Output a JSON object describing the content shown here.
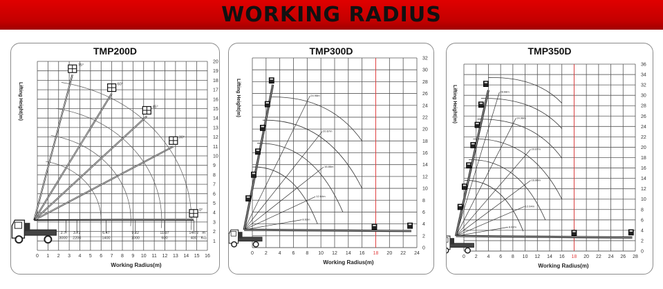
{
  "banner": {
    "title": "WORKING RADIUS",
    "background": "#d40000"
  },
  "chart_data": [
    {
      "type": "line",
      "title": "TMP200D",
      "xlabel": "Working Radius(m)",
      "ylabel": "Lifting Height(m)",
      "xlim": [
        0,
        16
      ],
      "ylim": [
        0,
        20
      ],
      "xticks": [
        0,
        1,
        2,
        3,
        4,
        5,
        6,
        7,
        8,
        9,
        10,
        11,
        12,
        13,
        14,
        15,
        16
      ],
      "yticks": [
        1,
        2,
        3,
        4,
        5,
        6,
        7,
        8,
        9,
        10,
        11,
        12,
        13,
        14,
        15,
        16,
        17,
        18,
        19,
        20
      ],
      "grid": true,
      "pivot": [
        -0.3,
        3.2
      ],
      "booms": [
        {
          "angle": "75°",
          "tip": [
            3.3,
            18.6
          ]
        },
        {
          "angle": "60°",
          "tip": [
            7.0,
            16.6
          ]
        },
        {
          "angle": "45°",
          "tip": [
            10.3,
            14.2
          ]
        },
        {
          "angle": "30°",
          "tip": [
            12.8,
            11.0
          ]
        },
        {
          "angle": "0°",
          "tip": [
            14.7,
            3.3
          ]
        }
      ],
      "arc_radii": [
        6.3,
        9.1,
        12.0,
        14.8
      ],
      "load_table": {
        "radius_unit": "m",
        "load_unit": "KG",
        "radius_m": [
          "2.7",
          "3.72",
          "6.47",
          "9.22",
          "11.97",
          "14.72"
        ],
        "load_kg": [
          "3000",
          "2200",
          "1400",
          "1000",
          "600",
          "400"
        ]
      },
      "highlight_x": null
    },
    {
      "type": "line",
      "title": "TMP300D",
      "xlabel": "Working Radius(m)",
      "ylabel": "Lifting Height(m)",
      "xlim": [
        0,
        24
      ],
      "ylim": [
        0,
        32
      ],
      "xticks": [
        0,
        2,
        4,
        6,
        8,
        10,
        12,
        14,
        16,
        18,
        20,
        22,
        24
      ],
      "yticks": [
        0,
        2,
        4,
        6,
        8,
        10,
        12,
        14,
        16,
        18,
        20,
        22,
        24,
        26,
        28,
        30,
        32
      ],
      "grid": true,
      "pivot": [
        -1.2,
        3.0
      ],
      "booms": [
        {
          "angle": "",
          "tip": [
            3.0,
            27.5
          ]
        },
        {
          "angle": "",
          "tip": [
            23.2,
            2.8
          ]
        }
      ],
      "platforms": [
        [
          2.8,
          28.2
        ],
        [
          2.2,
          24.2
        ],
        [
          1.5,
          20.2
        ],
        [
          0.8,
          16.2
        ],
        [
          0.2,
          12.3
        ],
        [
          -0.6,
          8.3
        ],
        [
          17.8,
          3.5
        ],
        [
          23.0,
          3.7
        ]
      ],
      "arcs": [
        {
          "from": [
            2.6,
            25.4
          ],
          "to": [
            16.0,
            18.0
          ]
        },
        {
          "from": [
            1.5,
            21.5
          ],
          "to": [
            16.0,
            10.0
          ]
        },
        {
          "from": [
            0.7,
            17.6
          ],
          "to": [
            13.2,
            6.0
          ]
        },
        {
          "from": [
            0.0,
            13.6
          ],
          "to": [
            9.5,
            4.0
          ]
        }
      ],
      "rays": [
        {
          "label": "24.98m",
          "end": [
            8.4,
            25.6
          ]
        },
        {
          "label": "20.67m",
          "end": [
            10.2,
            19.6
          ]
        },
        {
          "label": "16.86m",
          "end": [
            10.4,
            13.6
          ]
        },
        {
          "label": "12.64m",
          "end": [
            9.2,
            8.6
          ]
        },
        {
          "label": "8.62m",
          "end": [
            7.2,
            4.7
          ]
        }
      ],
      "highlight_x": 18,
      "highlight_color": "#e04040"
    },
    {
      "type": "line",
      "title": "TMP350D",
      "xlabel": "Working Radius(m)",
      "ylabel": "Lifting Height(m)",
      "xlim": [
        0,
        28
      ],
      "ylim": [
        0,
        36
      ],
      "xticks": [
        0,
        2,
        4,
        6,
        8,
        10,
        12,
        14,
        16,
        18,
        20,
        22,
        24,
        26,
        28
      ],
      "yticks": [
        0,
        2,
        4,
        6,
        8,
        10,
        12,
        14,
        16,
        18,
        20,
        22,
        24,
        26,
        28,
        30,
        32,
        34,
        36
      ],
      "grid": true,
      "pivot": [
        -1.3,
        2.9
      ],
      "booms": [
        {
          "angle": "",
          "tip": [
            4.0,
            31.0
          ]
        },
        {
          "angle": "",
          "tip": [
            27.5,
            2.6
          ]
        }
      ],
      "platforms": [
        [
          3.6,
          32.2
        ],
        [
          2.8,
          28.2
        ],
        [
          2.2,
          24.3
        ],
        [
          1.5,
          20.4
        ],
        [
          0.8,
          16.5
        ],
        [
          0.1,
          12.4
        ],
        [
          -0.6,
          8.5
        ],
        [
          18.0,
          3.5
        ],
        [
          27.3,
          3.6
        ]
      ],
      "arcs": [
        {
          "from": [
            4.0,
            33.4
          ],
          "to": [
            16.0,
            28.5
          ]
        },
        {
          "from": [
            2.8,
            29.4
          ],
          "to": [
            16.0,
            23.6
          ]
        },
        {
          "from": [
            2.2,
            25.4
          ],
          "to": [
            16.0,
            17.9
          ]
        },
        {
          "from": [
            1.5,
            21.6
          ],
          "to": [
            16.0,
            10.0
          ]
        },
        {
          "from": [
            0.8,
            17.6
          ],
          "to": [
            13.3,
            6.0
          ]
        },
        {
          "from": [
            0.1,
            13.6
          ],
          "to": [
            9.7,
            3.8
          ]
        }
      ],
      "rays": [
        {
          "label": "28.68m",
          "end": [
            5.8,
            30.6
          ]
        },
        {
          "label": "24.98m",
          "end": [
            8.5,
            25.6
          ]
        },
        {
          "label": "20.67m",
          "end": [
            10.9,
            19.6
          ]
        },
        {
          "label": "16.86m",
          "end": [
            10.9,
            13.6
          ]
        },
        {
          "label": "12.64m",
          "end": [
            9.9,
            8.6
          ]
        },
        {
          "label": "8.62m",
          "end": [
            7.2,
            4.6
          ]
        }
      ],
      "highlight_x": 18,
      "highlight_color": "#e04040"
    }
  ]
}
